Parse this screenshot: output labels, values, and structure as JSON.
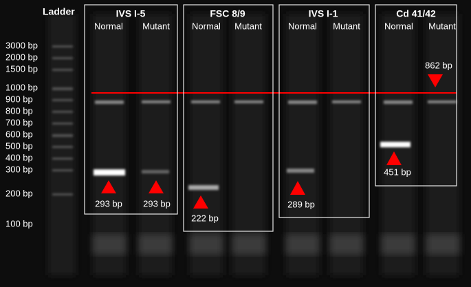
{
  "ladder": {
    "title": "Ladder",
    "labels": [
      "3000 bp",
      "2000 bp",
      "1500 bp",
      "1000 bp",
      "900 bp",
      "800 bp",
      "700 bp",
      "600 bp",
      "500 bp",
      "400 bp",
      "300 bp",
      "200 bp",
      "100 bp"
    ]
  },
  "panels": [
    {
      "title": "IVS I-5",
      "lanes": [
        "Normal",
        "Mutant"
      ],
      "annotations": [
        "293 bp",
        "293 bp"
      ]
    },
    {
      "title": "FSC 8/9",
      "lanes": [
        "Normal",
        "Mutant"
      ],
      "annotations": [
        "222 bp"
      ]
    },
    {
      "title": "IVS I-1",
      "lanes": [
        "Normal",
        "Mutant"
      ],
      "annotations": [
        "289 bp"
      ]
    },
    {
      "title": "Cd 41/42",
      "lanes": [
        "Normal",
        "Mutant"
      ],
      "annotations": [
        "451 bp",
        "862 bp"
      ]
    }
  ]
}
